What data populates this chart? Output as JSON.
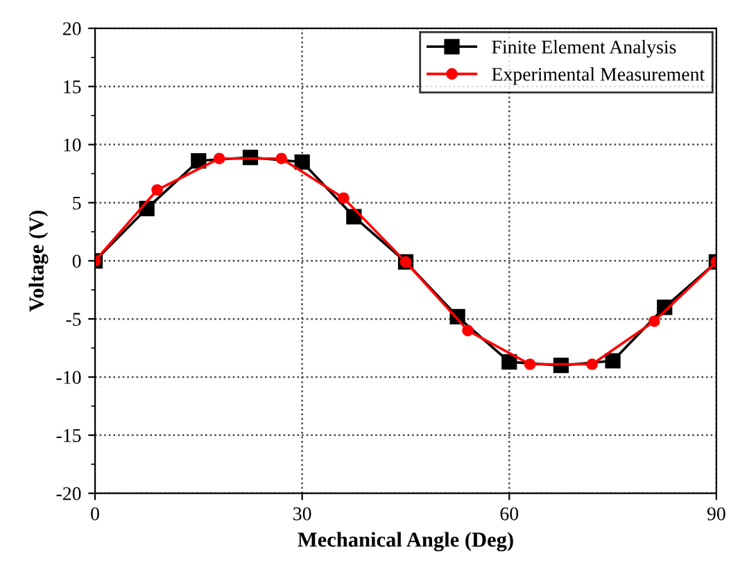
{
  "chart_data": {
    "type": "line",
    "xlabel": "Mechanical Angle (Deg)",
    "ylabel": "Voltage (V)",
    "xlim": [
      0,
      90
    ],
    "ylim": [
      -20,
      20
    ],
    "xticks": [
      0,
      30,
      60,
      90
    ],
    "yticks": [
      -20,
      -15,
      -10,
      -5,
      0,
      5,
      10,
      15,
      20
    ],
    "grid": true,
    "legend": "top right",
    "series": [
      {
        "name": "Finite Element Analysis",
        "color": "#000000",
        "marker": "square",
        "x": [
          0,
          7.5,
          15,
          22.5,
          30,
          37.5,
          45,
          52.5,
          60,
          67.5,
          75,
          82.5,
          90
        ],
        "values": [
          0,
          4.5,
          8.6,
          8.9,
          8.5,
          3.8,
          -0.1,
          -4.8,
          -8.7,
          -9.0,
          -8.6,
          -4.0,
          -0.1
        ]
      },
      {
        "name": "Experimental Measurement",
        "color": "#ff0000",
        "marker": "circle",
        "x": [
          0,
          9,
          18,
          27,
          36,
          45,
          54,
          63,
          72,
          81,
          90
        ],
        "values": [
          0,
          6.1,
          8.8,
          8.8,
          5.4,
          -0.1,
          -6.0,
          -8.9,
          -8.9,
          -5.2,
          -0.1
        ]
      }
    ]
  }
}
